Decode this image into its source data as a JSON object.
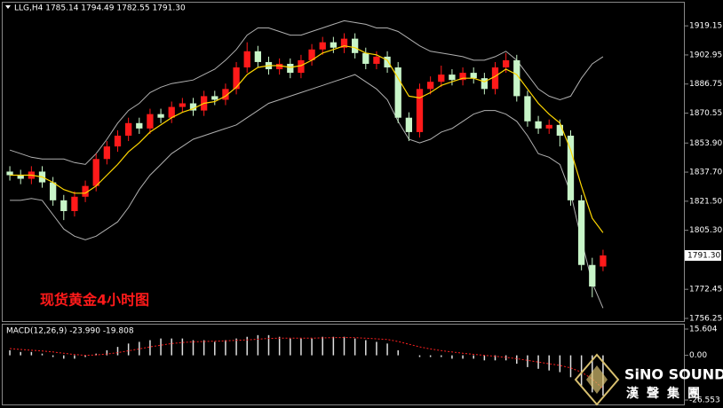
{
  "title": "LLG,H4  1785.14 1794.49 1782.55 1791.30",
  "label": "现货黄金4小时图",
  "logo": {
    "en": "SiNO SOUND",
    "zh": "漢聲集團"
  },
  "chart_data": [
    {
      "type": "candlestick",
      "up_color": "#ff1a1a",
      "down_color": "#c8f5c8",
      "open": [
        1838,
        1836,
        1834,
        1838,
        1832,
        1822,
        1816,
        1824,
        1830,
        1845,
        1852,
        1858,
        1865,
        1862,
        1870,
        1868,
        1874,
        1876,
        1872,
        1880,
        1878,
        1884,
        1896,
        1905,
        1899,
        1895,
        1898,
        1893,
        1900,
        1906,
        1910,
        1907,
        1912,
        1904,
        1898,
        1902,
        1896,
        1868,
        1860,
        1884,
        1888,
        1892,
        1889,
        1893,
        1890,
        1884,
        1896,
        1900,
        1880,
        1866,
        1862,
        1864,
        1858,
        1822,
        1786,
        1785.14
      ],
      "high": [
        1841,
        1839,
        1841,
        1841,
        1835,
        1825,
        1827,
        1833,
        1848,
        1855,
        1861,
        1868,
        1868,
        1873,
        1873,
        1877,
        1879,
        1879,
        1883,
        1883,
        1887,
        1899,
        1910,
        1908,
        1902,
        1901,
        1901,
        1903,
        1909,
        1913,
        1913,
        1915,
        1915,
        1907,
        1905,
        1905,
        1899,
        1871,
        1887,
        1891,
        1897,
        1895,
        1896,
        1896,
        1893,
        1899,
        1904,
        1903,
        1883,
        1869,
        1867,
        1867,
        1861,
        1825,
        1790,
        1794.49
      ],
      "low": [
        1833,
        1831,
        1831,
        1829,
        1819,
        1811,
        1813,
        1821,
        1827,
        1842,
        1849,
        1855,
        1859,
        1859,
        1865,
        1865,
        1871,
        1869,
        1869,
        1875,
        1875,
        1881,
        1893,
        1896,
        1892,
        1892,
        1890,
        1890,
        1897,
        1903,
        1904,
        1904,
        1901,
        1895,
        1895,
        1893,
        1865,
        1855,
        1857,
        1881,
        1885,
        1886,
        1886,
        1887,
        1881,
        1881,
        1893,
        1877,
        1863,
        1859,
        1859,
        1852,
        1819,
        1783,
        1768,
        1782.55
      ],
      "close": [
        1836,
        1834,
        1838,
        1832,
        1822,
        1816,
        1824,
        1830,
        1845,
        1852,
        1858,
        1865,
        1862,
        1870,
        1868,
        1874,
        1876,
        1872,
        1880,
        1878,
        1884,
        1896,
        1905,
        1899,
        1895,
        1898,
        1893,
        1900,
        1906,
        1910,
        1907,
        1912,
        1904,
        1898,
        1902,
        1896,
        1868,
        1860,
        1884,
        1888,
        1892,
        1889,
        1893,
        1890,
        1884,
        1896,
        1900,
        1880,
        1866,
        1862,
        1864,
        1858,
        1822,
        1786,
        1774,
        1791.3
      ],
      "ma": {
        "color": "#ffd700",
        "values": [
          1836,
          1836,
          1836,
          1835,
          1832,
          1828,
          1826,
          1826,
          1830,
          1836,
          1842,
          1849,
          1854,
          1860,
          1864,
          1868,
          1871,
          1873,
          1876,
          1877,
          1880,
          1885,
          1892,
          1896,
          1897,
          1897,
          1896,
          1897,
          1900,
          1904,
          1906,
          1908,
          1907,
          1904,
          1903,
          1900,
          1890,
          1880,
          1879,
          1882,
          1886,
          1888,
          1890,
          1890,
          1888,
          1891,
          1895,
          1892,
          1884,
          1876,
          1870,
          1865,
          1850,
          1830,
          1812,
          1804
        ]
      },
      "bands": [
        {
          "color": "#b0b0b0",
          "values": [
            1850,
            1848,
            1846,
            1845,
            1845,
            1845,
            1843,
            1842,
            1848,
            1856,
            1865,
            1872,
            1876,
            1882,
            1885,
            1887,
            1888,
            1889,
            1892,
            1895,
            1900,
            1906,
            1914,
            1918,
            1918,
            1916,
            1914,
            1914,
            1916,
            1918,
            1920,
            1922,
            1921,
            1920,
            1918,
            1918,
            1916,
            1912,
            1908,
            1905,
            1904,
            1903,
            1902,
            1900,
            1900,
            1902,
            1905,
            1900,
            1892,
            1884,
            1880,
            1878,
            1880,
            1890,
            1898,
            1902
          ]
        },
        {
          "color": "#b0b0b0",
          "values": [
            1822,
            1822,
            1823,
            1822,
            1814,
            1806,
            1802,
            1800,
            1802,
            1806,
            1810,
            1818,
            1828,
            1836,
            1842,
            1848,
            1852,
            1856,
            1858,
            1860,
            1862,
            1864,
            1868,
            1872,
            1876,
            1878,
            1880,
            1882,
            1884,
            1886,
            1888,
            1890,
            1892,
            1888,
            1884,
            1878,
            1866,
            1856,
            1854,
            1856,
            1860,
            1862,
            1866,
            1870,
            1872,
            1872,
            1870,
            1866,
            1858,
            1848,
            1846,
            1842,
            1826,
            1800,
            1776,
            1762
          ]
        }
      ],
      "last_price": {
        "value": 1791.3,
        "label": "1791.30"
      },
      "ylim": [
        1754.76,
        1932.06
      ],
      "yticks": [
        1919.15,
        1902.95,
        1886.75,
        1870.55,
        {
          "value": 1853.9,
          "label": "1853.90"
        },
        {
          "value": 1837.7,
          "label": "1837.70"
        },
        {
          "value": 1821.5,
          "label": "1821.50"
        },
        {
          "value": 1805.3,
          "label": "1805.30"
        },
        1772.45,
        1756.25
      ]
    },
    {
      "type": "macd",
      "title": "MACD(12,26,9) -23.990 -19.808",
      "histogram": {
        "color": "#e0e0e0",
        "values": [
          3,
          2,
          2,
          1,
          -1,
          -2,
          -2,
          -1,
          1,
          3,
          5,
          7,
          8,
          9,
          10,
          10,
          10,
          9,
          9,
          8,
          9,
          10,
          11,
          12,
          12,
          11,
          10,
          10,
          10,
          11,
          11,
          11,
          10,
          9,
          8,
          7,
          3,
          0,
          -1,
          -1,
          -1,
          -2,
          -2,
          -2,
          -3,
          -3,
          -3,
          -5,
          -7,
          -8,
          -9,
          -10,
          -13,
          -18,
          -22,
          -23.99
        ]
      },
      "signal": {
        "color": "#ff2020",
        "values": [
          4,
          3.5,
          3,
          2.6,
          2,
          1.2,
          0.5,
          0,
          0.2,
          0.8,
          1.6,
          2.7,
          3.8,
          5,
          6,
          7,
          7.6,
          8,
          8.2,
          8.4,
          8.6,
          8.9,
          9.2,
          9.6,
          10,
          10.2,
          10.2,
          10.2,
          10.2,
          10.4,
          10.5,
          10.6,
          10.5,
          10.2,
          9.8,
          9.4,
          8.2,
          6.6,
          5,
          3.8,
          2.8,
          2,
          1.2,
          0.6,
          0,
          -0.6,
          -1.2,
          -2,
          -3,
          -4,
          -5,
          -6,
          -7.5,
          -10,
          -14,
          -19.808
        ]
      },
      "ylim": [
        -29.19,
        18.765
      ],
      "yticks": [
        15.604,
        {
          "value": 0,
          "label": "0.00"
        },
        -26.553
      ]
    }
  ]
}
